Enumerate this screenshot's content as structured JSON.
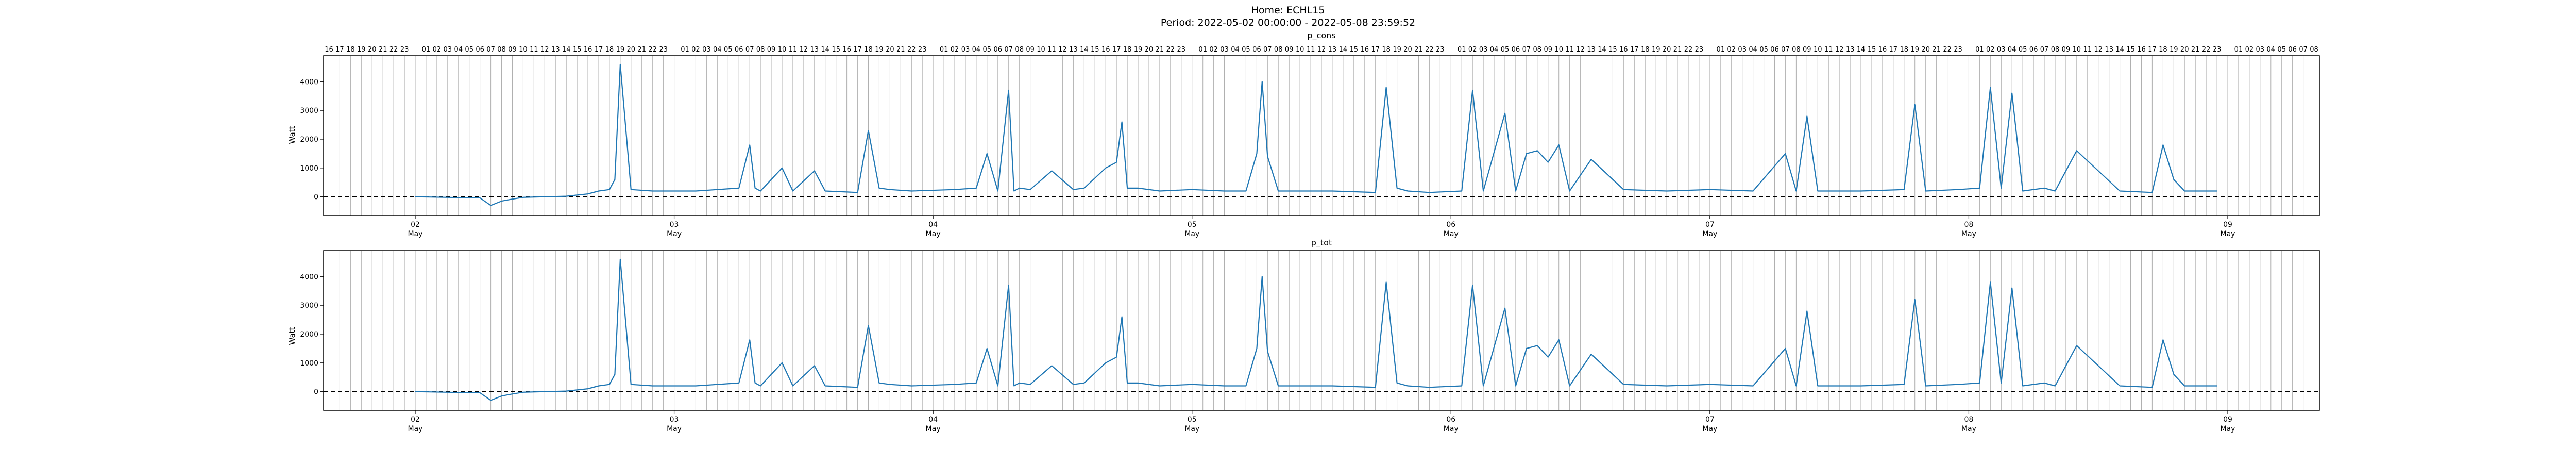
{
  "figure": {
    "title_line1": "Home: ECHL15",
    "title_line2": "Period: 2022-05-02 00:00:00 - 2022-05-08 23:59:52"
  },
  "colors": {
    "line": "#1f77b4",
    "axis": "#000000",
    "grid": "#b0b0b0",
    "zero": "#000000"
  },
  "chart_data": [
    {
      "type": "line",
      "title": "p_cons",
      "ylabel": "Watt",
      "xlim": [
        "2022-05-01 15:30",
        "2022-05-09 08:30"
      ],
      "ylim": [
        -650,
        4900
      ],
      "yticks": [
        0,
        1000,
        2000,
        3000,
        4000
      ],
      "x_major_ticks": [
        "2022-05-02",
        "2022-05-03",
        "2022-05-04",
        "2022-05-05",
        "2022-05-06",
        "2022-05-07",
        "2022-05-08",
        "2022-05-09"
      ],
      "x_major_labels": [
        "02",
        "03",
        "04",
        "05",
        "06",
        "07",
        "08",
        "09"
      ],
      "x_major_sublabel": "May",
      "hour_labels_top": [
        "16",
        "17",
        "18",
        "19",
        "20",
        "21",
        "22",
        "23",
        "01",
        "02",
        "03",
        "04",
        "05",
        "06",
        "07",
        "08",
        "09",
        "10",
        "11",
        "12",
        "13",
        "14",
        "15",
        "16",
        "17",
        "18",
        "19",
        "20",
        "21",
        "22",
        "23"
      ],
      "grid": "hourly vertical",
      "zero_line": "dashed",
      "series": [
        {
          "x": [
            "2022-05-02 00:00",
            "2022-05-02 03:00",
            "2022-05-02 06:00",
            "2022-05-02 07:00",
            "2022-05-02 08:00",
            "2022-05-02 09:00",
            "2022-05-02 10:00",
            "2022-05-02 12:00",
            "2022-05-02 14:00",
            "2022-05-02 16:00",
            "2022-05-02 17:00",
            "2022-05-02 18:00",
            "2022-05-02 18:30",
            "2022-05-02 19:00",
            "2022-05-02 20:00",
            "2022-05-02 22:00",
            "2022-05-03 02:00",
            "2022-05-03 06:00",
            "2022-05-03 07:00",
            "2022-05-03 07:30",
            "2022-05-03 08:00",
            "2022-05-03 09:30",
            "2022-05-03 10:00",
            "2022-05-03 11:00",
            "2022-05-03 13:00",
            "2022-05-03 14:00",
            "2022-05-03 17:00",
            "2022-05-03 18:00",
            "2022-05-03 19:00",
            "2022-05-03 20:00",
            "2022-05-03 22:00",
            "2022-05-04 02:00",
            "2022-05-04 04:00",
            "2022-05-04 05:00",
            "2022-05-04 06:00",
            "2022-05-04 07:00",
            "2022-05-04 07:30",
            "2022-05-04 08:00",
            "2022-05-04 09:00",
            "2022-05-04 11:00",
            "2022-05-04 13:00",
            "2022-05-04 14:00",
            "2022-05-04 16:00",
            "2022-05-04 17:00",
            "2022-05-04 17:30",
            "2022-05-04 18:00",
            "2022-05-04 19:00",
            "2022-05-04 21:00",
            "2022-05-05 00:00",
            "2022-05-05 03:00",
            "2022-05-05 05:00",
            "2022-05-05 06:00",
            "2022-05-05 06:30",
            "2022-05-05 07:00",
            "2022-05-05 08:00",
            "2022-05-05 10:00",
            "2022-05-05 13:00",
            "2022-05-05 17:00",
            "2022-05-05 18:00",
            "2022-05-05 19:00",
            "2022-05-05 20:00",
            "2022-05-05 22:00",
            "2022-05-06 01:00",
            "2022-05-06 02:00",
            "2022-05-06 03:00",
            "2022-05-06 05:00",
            "2022-05-06 06:00",
            "2022-05-06 07:00",
            "2022-05-06 08:00",
            "2022-05-06 09:00",
            "2022-05-06 10:00",
            "2022-05-06 11:00",
            "2022-05-06 13:00",
            "2022-05-06 16:00",
            "2022-05-06 20:00",
            "2022-05-07 00:00",
            "2022-05-07 04:00",
            "2022-05-07 07:00",
            "2022-05-07 08:00",
            "2022-05-07 09:00",
            "2022-05-07 10:00",
            "2022-05-07 14:00",
            "2022-05-07 18:00",
            "2022-05-07 19:00",
            "2022-05-07 20:00",
            "2022-05-07 23:00",
            "2022-05-08 01:00",
            "2022-05-08 02:00",
            "2022-05-08 03:00",
            "2022-05-08 04:00",
            "2022-05-08 05:00",
            "2022-05-08 07:00",
            "2022-05-08 08:00",
            "2022-05-08 10:00",
            "2022-05-08 14:00",
            "2022-05-08 17:00",
            "2022-05-08 18:00",
            "2022-05-08 19:00",
            "2022-05-08 20:00",
            "2022-05-08 23:00"
          ],
          "y": [
            0,
            -20,
            -40,
            -300,
            -150,
            -80,
            -20,
            0,
            20,
            100,
            200,
            250,
            600,
            4600,
            250,
            200,
            200,
            300,
            1800,
            300,
            200,
            800,
            1000,
            200,
            900,
            200,
            150,
            2300,
            300,
            250,
            200,
            250,
            300,
            1500,
            200,
            3700,
            200,
            300,
            250,
            900,
            250,
            300,
            1000,
            1200,
            2600,
            300,
            300,
            200,
            250,
            200,
            200,
            1500,
            4000,
            1400,
            200,
            200,
            200,
            150,
            3800,
            300,
            200,
            150,
            200,
            3700,
            200,
            2900,
            200,
            1500,
            1600,
            1200,
            1800,
            200,
            1300,
            250,
            200,
            250,
            200,
            1500,
            200,
            2800,
            200,
            200,
            250,
            3200,
            200,
            250,
            300,
            3800,
            300,
            3600,
            200,
            300,
            200,
            1600,
            200,
            150,
            1800,
            600,
            200,
            200
          ]
        }
      ]
    },
    {
      "type": "line",
      "title": "p_tot",
      "ylabel": "Watt",
      "xlim": [
        "2022-05-01 15:30",
        "2022-05-09 08:30"
      ],
      "ylim": [
        -650,
        4900
      ],
      "yticks": [
        0,
        1000,
        2000,
        3000,
        4000
      ],
      "x_major_ticks": [
        "2022-05-02",
        "2022-05-03",
        "2022-05-04",
        "2022-05-05",
        "2022-05-06",
        "2022-05-07",
        "2022-05-08",
        "2022-05-09"
      ],
      "x_major_labels": [
        "02",
        "03",
        "04",
        "05",
        "06",
        "07",
        "08",
        "09"
      ],
      "x_major_sublabel": "May",
      "grid": "hourly vertical",
      "zero_line": "dashed",
      "series": [
        {
          "x": [
            "2022-05-02 00:00",
            "2022-05-02 03:00",
            "2022-05-02 06:00",
            "2022-05-02 07:00",
            "2022-05-02 08:00",
            "2022-05-02 09:00",
            "2022-05-02 10:00",
            "2022-05-02 12:00",
            "2022-05-02 14:00",
            "2022-05-02 16:00",
            "2022-05-02 17:00",
            "2022-05-02 18:00",
            "2022-05-02 18:30",
            "2022-05-02 19:00",
            "2022-05-02 20:00",
            "2022-05-02 22:00",
            "2022-05-03 02:00",
            "2022-05-03 06:00",
            "2022-05-03 07:00",
            "2022-05-03 07:30",
            "2022-05-03 08:00",
            "2022-05-03 09:30",
            "2022-05-03 10:00",
            "2022-05-03 11:00",
            "2022-05-03 13:00",
            "2022-05-03 14:00",
            "2022-05-03 17:00",
            "2022-05-03 18:00",
            "2022-05-03 19:00",
            "2022-05-03 20:00",
            "2022-05-03 22:00",
            "2022-05-04 02:00",
            "2022-05-04 04:00",
            "2022-05-04 05:00",
            "2022-05-04 06:00",
            "2022-05-04 07:00",
            "2022-05-04 07:30",
            "2022-05-04 08:00",
            "2022-05-04 09:00",
            "2022-05-04 11:00",
            "2022-05-04 13:00",
            "2022-05-04 14:00",
            "2022-05-04 16:00",
            "2022-05-04 17:00",
            "2022-05-04 17:30",
            "2022-05-04 18:00",
            "2022-05-04 19:00",
            "2022-05-04 21:00",
            "2022-05-05 00:00",
            "2022-05-05 03:00",
            "2022-05-05 05:00",
            "2022-05-05 06:00",
            "2022-05-05 06:30",
            "2022-05-05 07:00",
            "2022-05-05 08:00",
            "2022-05-05 10:00",
            "2022-05-05 13:00",
            "2022-05-05 17:00",
            "2022-05-05 18:00",
            "2022-05-05 19:00",
            "2022-05-05 20:00",
            "2022-05-05 22:00",
            "2022-05-06 01:00",
            "2022-05-06 02:00",
            "2022-05-06 03:00",
            "2022-05-06 05:00",
            "2022-05-06 06:00",
            "2022-05-06 07:00",
            "2022-05-06 08:00",
            "2022-05-06 09:00",
            "2022-05-06 10:00",
            "2022-05-06 11:00",
            "2022-05-06 13:00",
            "2022-05-06 16:00",
            "2022-05-06 20:00",
            "2022-05-07 00:00",
            "2022-05-07 04:00",
            "2022-05-07 07:00",
            "2022-05-07 08:00",
            "2022-05-07 09:00",
            "2022-05-07 10:00",
            "2022-05-07 14:00",
            "2022-05-07 18:00",
            "2022-05-07 19:00",
            "2022-05-07 20:00",
            "2022-05-07 23:00",
            "2022-05-08 01:00",
            "2022-05-08 02:00",
            "2022-05-08 03:00",
            "2022-05-08 04:00",
            "2022-05-08 05:00",
            "2022-05-08 07:00",
            "2022-05-08 08:00",
            "2022-05-08 10:00",
            "2022-05-08 14:00",
            "2022-05-08 17:00",
            "2022-05-08 18:00",
            "2022-05-08 19:00",
            "2022-05-08 20:00",
            "2022-05-08 23:00"
          ],
          "y": [
            0,
            -20,
            -40,
            -300,
            -150,
            -80,
            -20,
            0,
            20,
            100,
            200,
            250,
            600,
            4600,
            250,
            200,
            200,
            300,
            1800,
            300,
            200,
            800,
            1000,
            200,
            900,
            200,
            150,
            2300,
            300,
            250,
            200,
            250,
            300,
            1500,
            200,
            3700,
            200,
            300,
            250,
            900,
            250,
            300,
            1000,
            1200,
            2600,
            300,
            300,
            200,
            250,
            200,
            200,
            1500,
            4000,
            1400,
            200,
            200,
            200,
            150,
            3800,
            300,
            200,
            150,
            200,
            3700,
            200,
            2900,
            200,
            1500,
            1600,
            1200,
            1800,
            200,
            1300,
            250,
            200,
            250,
            200,
            1500,
            200,
            2800,
            200,
            200,
            250,
            3200,
            200,
            250,
            300,
            3800,
            300,
            3600,
            200,
            300,
            200,
            1600,
            200,
            150,
            1800,
            600,
            200,
            200
          ]
        }
      ]
    }
  ]
}
